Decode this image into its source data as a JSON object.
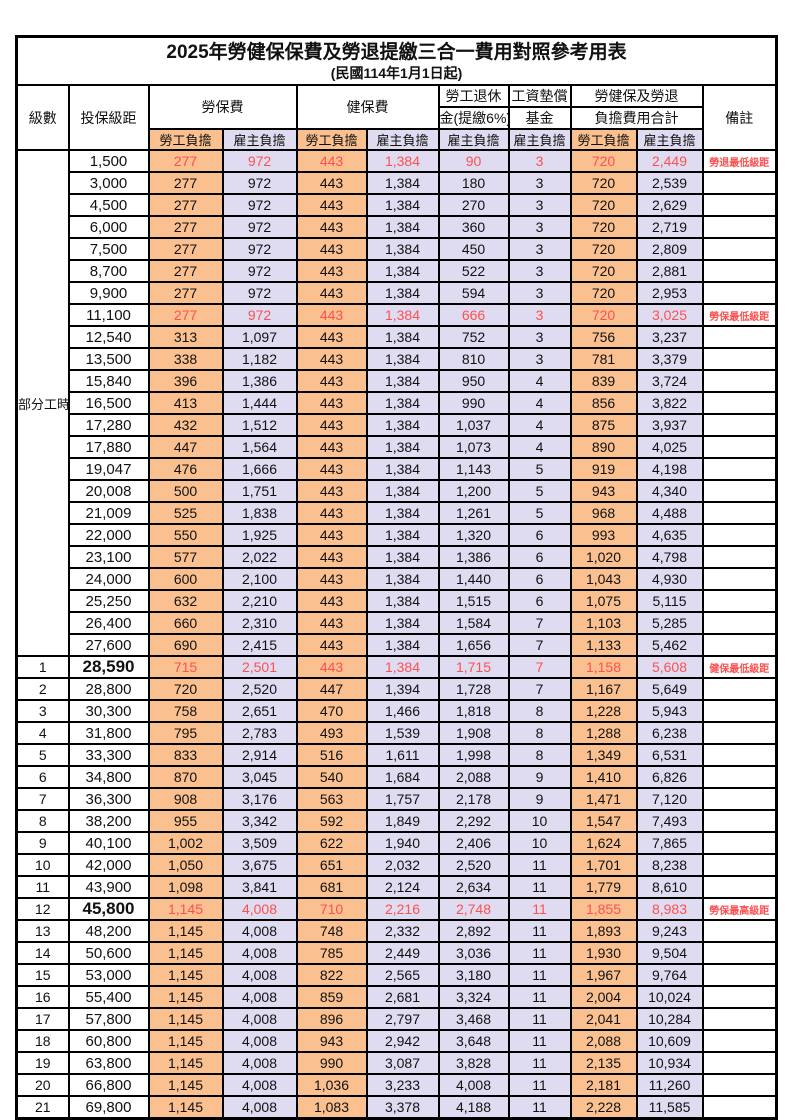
{
  "title": "2025年勞健保保費及勞退提繳三合一費用對照參考用表",
  "subtitle": "(民國114年1月1日起)",
  "colors": {
    "worker_column_bg": "#FAC090",
    "employer_column_bg": "#DFDCF1",
    "highlight_text": "#FF5050",
    "grid_line": "#000000"
  },
  "header": {
    "level": "級數",
    "bracket": "投保級距",
    "labor_fee": "勞保費",
    "health_fee": "健保費",
    "pension_top": "勞工退休",
    "pension_bottom": "金(提繳6%)",
    "wage_fund_top": "工資墊償",
    "wage_fund_bottom": "基金",
    "total_top": "勞健保及勞退",
    "total_bottom": "負擔費用合計",
    "remark": "備註",
    "sub_worker": "勞工負擔",
    "sub_employer": "雇主負擔"
  },
  "part_time_label": "部分工時",
  "part_time_span": 23,
  "row_fields": [
    "level",
    "bracket",
    "labor_worker",
    "labor_employer",
    "health_worker",
    "health_employer",
    "pension_employer",
    "wage_fund_employer",
    "total_worker",
    "total_employer",
    "remark"
  ],
  "highlight_rows": [
    0,
    7,
    23,
    34
  ],
  "bold_bracket_rows": [
    23,
    34
  ],
  "rows": [
    [
      "",
      "1,500",
      "277",
      "972",
      "443",
      "1,384",
      "90",
      "3",
      "720",
      "2,449",
      "勞退最低級距"
    ],
    [
      "",
      "3,000",
      "277",
      "972",
      "443",
      "1,384",
      "180",
      "3",
      "720",
      "2,539",
      ""
    ],
    [
      "",
      "4,500",
      "277",
      "972",
      "443",
      "1,384",
      "270",
      "3",
      "720",
      "2,629",
      ""
    ],
    [
      "",
      "6,000",
      "277",
      "972",
      "443",
      "1,384",
      "360",
      "3",
      "720",
      "2,719",
      ""
    ],
    [
      "",
      "7,500",
      "277",
      "972",
      "443",
      "1,384",
      "450",
      "3",
      "720",
      "2,809",
      ""
    ],
    [
      "",
      "8,700",
      "277",
      "972",
      "443",
      "1,384",
      "522",
      "3",
      "720",
      "2,881",
      ""
    ],
    [
      "",
      "9,900",
      "277",
      "972",
      "443",
      "1,384",
      "594",
      "3",
      "720",
      "2,953",
      ""
    ],
    [
      "",
      "11,100",
      "277",
      "972",
      "443",
      "1,384",
      "666",
      "3",
      "720",
      "3,025",
      "勞保最低級距"
    ],
    [
      "",
      "12,540",
      "313",
      "1,097",
      "443",
      "1,384",
      "752",
      "3",
      "756",
      "3,237",
      ""
    ],
    [
      "",
      "13,500",
      "338",
      "1,182",
      "443",
      "1,384",
      "810",
      "3",
      "781",
      "3,379",
      ""
    ],
    [
      "",
      "15,840",
      "396",
      "1,386",
      "443",
      "1,384",
      "950",
      "4",
      "839",
      "3,724",
      ""
    ],
    [
      "",
      "16,500",
      "413",
      "1,444",
      "443",
      "1,384",
      "990",
      "4",
      "856",
      "3,822",
      ""
    ],
    [
      "",
      "17,280",
      "432",
      "1,512",
      "443",
      "1,384",
      "1,037",
      "4",
      "875",
      "3,937",
      ""
    ],
    [
      "",
      "17,880",
      "447",
      "1,564",
      "443",
      "1,384",
      "1,073",
      "4",
      "890",
      "4,025",
      ""
    ],
    [
      "",
      "19,047",
      "476",
      "1,666",
      "443",
      "1,384",
      "1,143",
      "5",
      "919",
      "4,198",
      ""
    ],
    [
      "",
      "20,008",
      "500",
      "1,751",
      "443",
      "1,384",
      "1,200",
      "5",
      "943",
      "4,340",
      ""
    ],
    [
      "",
      "21,009",
      "525",
      "1,838",
      "443",
      "1,384",
      "1,261",
      "5",
      "968",
      "4,488",
      ""
    ],
    [
      "",
      "22,000",
      "550",
      "1,925",
      "443",
      "1,384",
      "1,320",
      "6",
      "993",
      "4,635",
      ""
    ],
    [
      "",
      "23,100",
      "577",
      "2,022",
      "443",
      "1,384",
      "1,386",
      "6",
      "1,020",
      "4,798",
      ""
    ],
    [
      "",
      "24,000",
      "600",
      "2,100",
      "443",
      "1,384",
      "1,440",
      "6",
      "1,043",
      "4,930",
      ""
    ],
    [
      "",
      "25,250",
      "632",
      "2,210",
      "443",
      "1,384",
      "1,515",
      "6",
      "1,075",
      "5,115",
      ""
    ],
    [
      "",
      "26,400",
      "660",
      "2,310",
      "443",
      "1,384",
      "1,584",
      "7",
      "1,103",
      "5,285",
      ""
    ],
    [
      "",
      "27,600",
      "690",
      "2,415",
      "443",
      "1,384",
      "1,656",
      "7",
      "1,133",
      "5,462",
      ""
    ],
    [
      "1",
      "28,590",
      "715",
      "2,501",
      "443",
      "1,384",
      "1,715",
      "7",
      "1,158",
      "5,608",
      "健保最低級距"
    ],
    [
      "2",
      "28,800",
      "720",
      "2,520",
      "447",
      "1,394",
      "1,728",
      "7",
      "1,167",
      "5,649",
      ""
    ],
    [
      "3",
      "30,300",
      "758",
      "2,651",
      "470",
      "1,466",
      "1,818",
      "8",
      "1,228",
      "5,943",
      ""
    ],
    [
      "4",
      "31,800",
      "795",
      "2,783",
      "493",
      "1,539",
      "1,908",
      "8",
      "1,288",
      "6,238",
      ""
    ],
    [
      "5",
      "33,300",
      "833",
      "2,914",
      "516",
      "1,611",
      "1,998",
      "8",
      "1,349",
      "6,531",
      ""
    ],
    [
      "6",
      "34,800",
      "870",
      "3,045",
      "540",
      "1,684",
      "2,088",
      "9",
      "1,410",
      "6,826",
      ""
    ],
    [
      "7",
      "36,300",
      "908",
      "3,176",
      "563",
      "1,757",
      "2,178",
      "9",
      "1,471",
      "7,120",
      ""
    ],
    [
      "8",
      "38,200",
      "955",
      "3,342",
      "592",
      "1,849",
      "2,292",
      "10",
      "1,547",
      "7,493",
      ""
    ],
    [
      "9",
      "40,100",
      "1,002",
      "3,509",
      "622",
      "1,940",
      "2,406",
      "10",
      "1,624",
      "7,865",
      ""
    ],
    [
      "10",
      "42,000",
      "1,050",
      "3,675",
      "651",
      "2,032",
      "2,520",
      "11",
      "1,701",
      "8,238",
      ""
    ],
    [
      "11",
      "43,900",
      "1,098",
      "3,841",
      "681",
      "2,124",
      "2,634",
      "11",
      "1,779",
      "8,610",
      ""
    ],
    [
      "12",
      "45,800",
      "1,145",
      "4,008",
      "710",
      "2,216",
      "2,748",
      "11",
      "1,855",
      "8,983",
      "勞保最高級距"
    ],
    [
      "13",
      "48,200",
      "1,145",
      "4,008",
      "748",
      "2,332",
      "2,892",
      "11",
      "1,893",
      "9,243",
      ""
    ],
    [
      "14",
      "50,600",
      "1,145",
      "4,008",
      "785",
      "2,449",
      "3,036",
      "11",
      "1,930",
      "9,504",
      ""
    ],
    [
      "15",
      "53,000",
      "1,145",
      "4,008",
      "822",
      "2,565",
      "3,180",
      "11",
      "1,967",
      "9,764",
      ""
    ],
    [
      "16",
      "55,400",
      "1,145",
      "4,008",
      "859",
      "2,681",
      "3,324",
      "11",
      "2,004",
      "10,024",
      ""
    ],
    [
      "17",
      "57,800",
      "1,145",
      "4,008",
      "896",
      "2,797",
      "3,468",
      "11",
      "2,041",
      "10,284",
      ""
    ],
    [
      "18",
      "60,800",
      "1,145",
      "4,008",
      "943",
      "2,942",
      "3,648",
      "11",
      "2,088",
      "10,609",
      ""
    ],
    [
      "19",
      "63,800",
      "1,145",
      "4,008",
      "990",
      "3,087",
      "3,828",
      "11",
      "2,135",
      "10,934",
      ""
    ],
    [
      "20",
      "66,800",
      "1,145",
      "4,008",
      "1,036",
      "3,233",
      "4,008",
      "11",
      "2,181",
      "11,260",
      ""
    ],
    [
      "21",
      "69,800",
      "1,145",
      "4,008",
      "1,083",
      "3,378",
      "4,188",
      "11",
      "2,228",
      "11,585",
      ""
    ]
  ]
}
